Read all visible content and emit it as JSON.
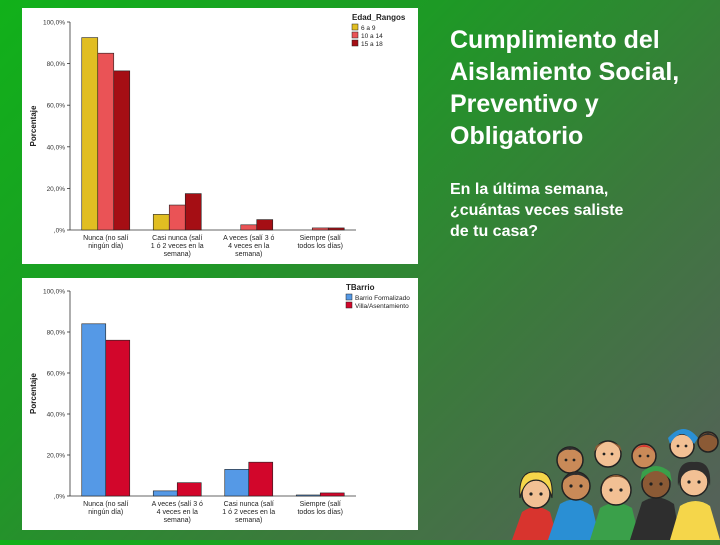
{
  "slide": {
    "title_lines": [
      "Cumplimiento del",
      "Aislamiento Social,",
      "Preventivo y",
      "Obligatorio"
    ],
    "question_lines": [
      "En la última semana,",
      "¿cuántas veces saliste",
      "de tu casa?"
    ]
  },
  "chart_data": [
    {
      "type": "bar",
      "ylabel": "Porcentaje",
      "xlabel": "",
      "ylim": [
        0,
        100
      ],
      "yticks": [
        "100,0%",
        "80,0%",
        "60,0%",
        "40,0%",
        "20,0%",
        ",0%"
      ],
      "tick_values": [
        100,
        80,
        60,
        40,
        20,
        0
      ],
      "legend_title": "Edad_Rangos",
      "legend_position": "top-right",
      "categories": [
        [
          "Nunca (no salí",
          "ningún día)"
        ],
        [
          "Casi nunca (salí",
          "1 ó 2 veces en la",
          "semana)"
        ],
        [
          "A veces (salí 3 ó",
          "4 veces en la",
          "semana)"
        ],
        [
          "Siempre (salí",
          "todos los días)"
        ]
      ],
      "series": [
        {
          "name": "6 a 9",
          "color": "#e1be22",
          "values": [
            92.5,
            7.5,
            0,
            0
          ]
        },
        {
          "name": "10 a 14",
          "color": "#ea5356",
          "values": [
            85,
            12,
            2.5,
            1
          ]
        },
        {
          "name": "15 a 18",
          "color": "#a50e14",
          "values": [
            76.5,
            17.5,
            5,
            1
          ]
        }
      ],
      "grid": false
    },
    {
      "type": "bar",
      "ylabel": "Porcentaje",
      "xlabel": "",
      "ylim": [
        0,
        100
      ],
      "yticks": [
        "100,0%",
        "80,0%",
        "60,0%",
        "40,0%",
        "20,0%",
        ",0%"
      ],
      "tick_values": [
        100,
        80,
        60,
        40,
        20,
        0
      ],
      "legend_title": "TBarrio",
      "legend_position": "top-right",
      "categories": [
        [
          "Nunca (no salí",
          "ningún día)"
        ],
        [
          "A veces (salí 3 ó",
          "4 veces en la",
          "semana)"
        ],
        [
          "Casi nunca (salí",
          "1 ó 2 veces en la",
          "semana)"
        ],
        [
          "Siempre (salí",
          "todos los días)"
        ]
      ],
      "series": [
        {
          "name": "Barrio Formalizado",
          "color": "#5599e6",
          "values": [
            84,
            2.5,
            13,
            0.5
          ]
        },
        {
          "name": "Villa/Asentamiento",
          "color": "#d2062b",
          "values": [
            76,
            6.5,
            16.5,
            1.5
          ]
        }
      ],
      "grid": false
    }
  ],
  "illustration": {
    "icon": "group-of-teenagers-illustration",
    "palette": [
      "#f2c094",
      "#c98a58",
      "#8b5a35",
      "#2e2e2e",
      "#d8342e",
      "#2a8fd4",
      "#3aa04a",
      "#f5d64a"
    ]
  }
}
